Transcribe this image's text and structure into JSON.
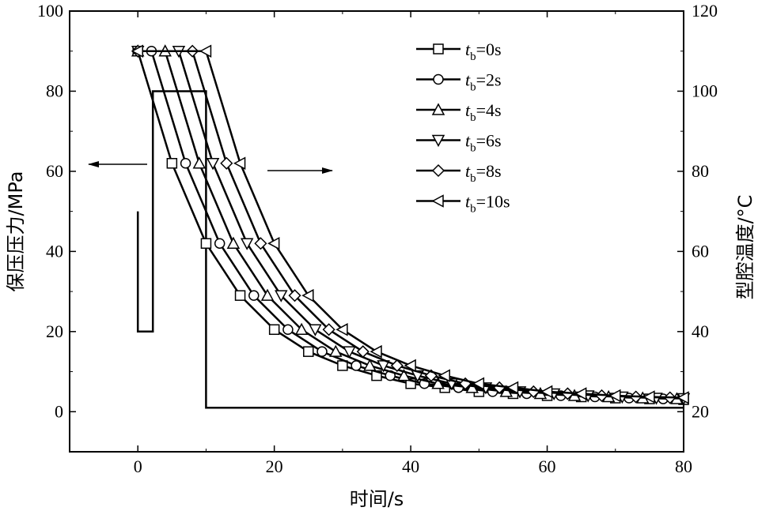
{
  "chart_data": {
    "type": "line",
    "xlabel": "时间/s",
    "ylabel_left": "保压压力/MPa",
    "ylabel_right": "型腔温度/°C",
    "xlim": [
      -10,
      80
    ],
    "ylim_left": [
      -10,
      100
    ],
    "ylim_right": [
      10,
      120
    ],
    "x_ticks": [
      "0",
      "20",
      "40",
      "60",
      "80"
    ],
    "y_left_ticks": [
      "0",
      "20",
      "40",
      "60",
      "80",
      "100"
    ],
    "y_right_ticks": [
      "20",
      "40",
      "60",
      "80",
      "100",
      "120"
    ],
    "grid": false,
    "legend_position": "top-right",
    "pressure_profile": {
      "axis": "left",
      "x": [
        0,
        0,
        0.2,
        0.2,
        2.2,
        2.2,
        10,
        10,
        80
      ],
      "y": [
        50,
        20,
        20,
        20,
        20,
        80,
        80,
        1,
        1
      ]
    },
    "annotations": [
      {
        "type": "arrow",
        "direction": "left",
        "meaning": "pressure curve uses left axis"
      },
      {
        "type": "arrow",
        "direction": "right",
        "meaning": "temperature curves use right axis"
      }
    ],
    "series": [
      {
        "name_prefix": "t",
        "name_sub": "b",
        "name_suffix": "=0s",
        "marker": "square",
        "axis": "right",
        "x": [
          0,
          5,
          10,
          15,
          20,
          25,
          30,
          35,
          40,
          45,
          50,
          55,
          60,
          65,
          70,
          75,
          80
        ],
        "y": [
          110,
          82,
          62,
          49,
          40.5,
          35,
          31.5,
          29,
          27,
          26,
          25,
          24.5,
          24,
          23.7,
          23.4,
          23.2,
          23
        ]
      },
      {
        "name_prefix": "t",
        "name_sub": "b",
        "name_suffix": "=2s",
        "marker": "circle",
        "axis": "right",
        "x": [
          0,
          2,
          7,
          12,
          17,
          22,
          27,
          32,
          37,
          42,
          47,
          52,
          57,
          62,
          67,
          72,
          77
        ],
        "y": [
          110,
          110,
          82,
          62,
          49,
          40.5,
          35,
          31.5,
          29,
          27,
          26,
          25,
          24.5,
          24,
          23.7,
          23.4,
          23.2
        ]
      },
      {
        "name_prefix": "t",
        "name_sub": "b",
        "name_suffix": "=4s",
        "marker": "triangle-up",
        "axis": "right",
        "x": [
          0,
          4,
          9,
          14,
          19,
          24,
          29,
          34,
          39,
          44,
          49,
          54,
          59,
          64,
          69,
          74,
          79
        ],
        "y": [
          110,
          110,
          82,
          62,
          49,
          40.5,
          35,
          31.5,
          29,
          27,
          26,
          25,
          24.5,
          24,
          23.7,
          23.4,
          23.2
        ]
      },
      {
        "name_prefix": "t",
        "name_sub": "b",
        "name_suffix": "=6s",
        "marker": "triangle-down",
        "axis": "right",
        "x": [
          0,
          6,
          11,
          16,
          21,
          26,
          31,
          36,
          41,
          46,
          51,
          56,
          61,
          66,
          71,
          76,
          80
        ],
        "y": [
          110,
          110,
          82,
          62,
          49,
          40.5,
          35,
          31.5,
          29,
          27,
          26,
          25,
          24.5,
          24,
          23.7,
          23.4,
          23.3
        ]
      },
      {
        "name_prefix": "t",
        "name_sub": "b",
        "name_suffix": "=8s",
        "marker": "diamond",
        "axis": "right",
        "x": [
          0,
          8,
          13,
          18,
          23,
          28,
          33,
          38,
          43,
          48,
          53,
          58,
          63,
          68,
          73,
          78
        ],
        "y": [
          110,
          110,
          82,
          62,
          49,
          40.5,
          35,
          31.5,
          29,
          27,
          26,
          25,
          24.5,
          24,
          23.7,
          23.5
        ]
      },
      {
        "name_prefix": "t",
        "name_sub": "b",
        "name_suffix": "=10s",
        "marker": "triangle-left",
        "axis": "right",
        "x": [
          0,
          10,
          15,
          20,
          25,
          30,
          35,
          40,
          45,
          50,
          55,
          60,
          65,
          70,
          75,
          80
        ],
        "y": [
          110,
          110,
          82,
          62,
          49,
          40.5,
          35,
          31.5,
          29,
          27,
          26,
          25,
          24.5,
          24,
          23.7,
          23.5
        ]
      }
    ]
  }
}
